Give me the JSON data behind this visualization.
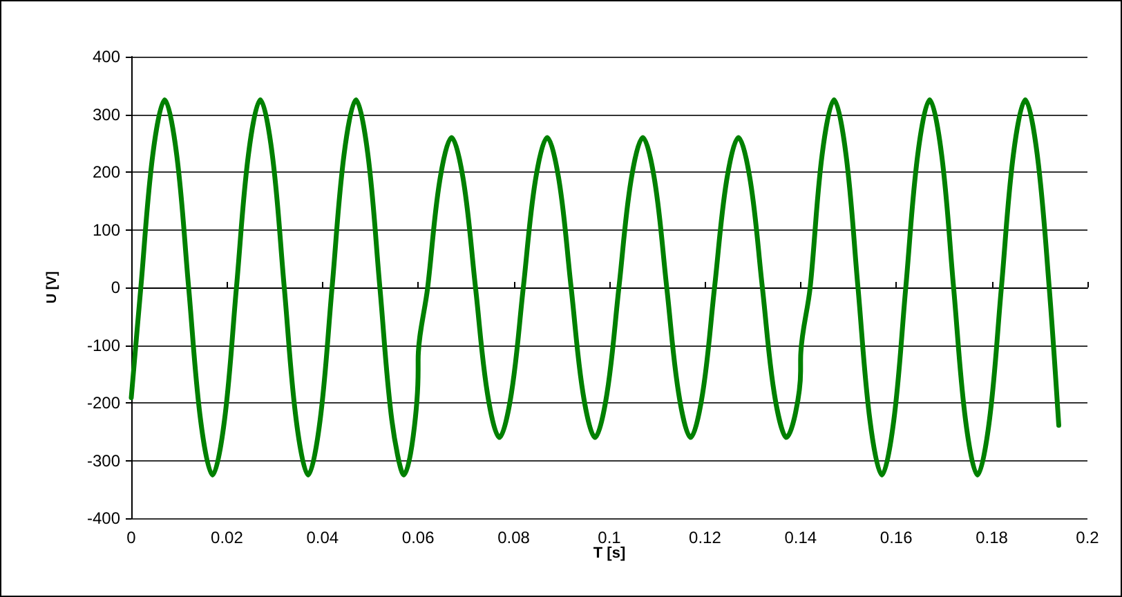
{
  "chart_data": {
    "type": "line",
    "xlabel": "T [s]",
    "ylabel": "U [V]",
    "x": [
      0,
      0.002,
      0.0045,
      0.007,
      0.0095,
      0.012,
      0.0145,
      0.017,
      0.0195,
      0.022,
      0.0245,
      0.027,
      0.0295,
      0.032,
      0.0345,
      0.037,
      0.0395,
      0.042,
      0.0445,
      0.047,
      0.0495,
      0.052,
      0.0545,
      0.057,
      0.06,
      0.06,
      0.062,
      0.0645,
      0.067,
      0.0695,
      0.072,
      0.0745,
      0.077,
      0.0795,
      0.082,
      0.0845,
      0.087,
      0.0895,
      0.092,
      0.0945,
      0.097,
      0.0995,
      0.102,
      0.1045,
      0.107,
      0.1095,
      0.112,
      0.1145,
      0.117,
      0.1195,
      0.122,
      0.1245,
      0.127,
      0.1295,
      0.132,
      0.1345,
      0.137,
      0.14,
      0.14,
      0.142,
      0.1445,
      0.147,
      0.1495,
      0.152,
      0.1545,
      0.157,
      0.1595,
      0.162,
      0.1645,
      0.167,
      0.1695,
      0.172,
      0.1745,
      0.177,
      0.1795,
      0.182,
      0.1845,
      0.187,
      0.1895,
      0.192,
      0.194
    ],
    "series": [
      {
        "color": "#008000",
        "values": [
          -191,
          0,
          230,
          325,
          230,
          0,
          -230,
          -325,
          -230,
          0,
          230,
          325,
          230,
          0,
          -230,
          -325,
          -230,
          0,
          230,
          325,
          230,
          0,
          -230,
          -325,
          -143,
          -126,
          0,
          184,
          260,
          184,
          0,
          -184,
          -260,
          -184,
          0,
          184,
          260,
          184,
          0,
          -184,
          -260,
          -184,
          0,
          184,
          260,
          184,
          0,
          -184,
          -260,
          -184,
          0,
          184,
          260,
          184,
          0,
          -184,
          -260,
          -145,
          -125,
          0,
          230,
          325,
          230,
          0,
          -230,
          -325,
          -230,
          0,
          230,
          325,
          230,
          0,
          -230,
          -325,
          -230,
          0,
          230,
          325,
          230,
          0,
          -239
        ]
      }
    ],
    "xlim": [
      0,
      0.2
    ],
    "xticks": [
      0,
      0.02,
      0.04,
      0.06,
      0.08,
      0.1,
      0.12,
      0.14,
      0.16,
      0.18,
      0.2
    ],
    "ylim": [
      -400,
      400
    ],
    "yticks": [
      -400,
      -300,
      -200,
      -100,
      0,
      100,
      200,
      300,
      400
    ],
    "grid": "y",
    "marker": "none",
    "line_style": "solid"
  }
}
